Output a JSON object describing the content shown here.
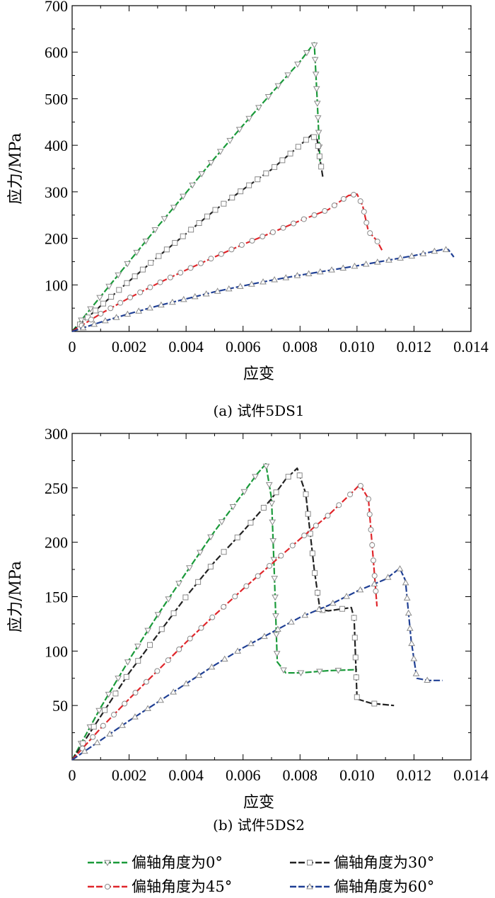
{
  "legend": [
    {
      "label": "偏轴角度为0°",
      "color": "#1a9a3a",
      "marker": "triangle-down"
    },
    {
      "label": "偏轴角度为30°",
      "color": "#222222",
      "marker": "square"
    },
    {
      "label": "偏轴角度为45°",
      "color": "#e0262b",
      "marker": "circle"
    },
    {
      "label": "偏轴角度为60°",
      "color": "#1f3f94",
      "marker": "triangle-up"
    }
  ],
  "legend_placement": "bottom",
  "chart_data": [
    {
      "type": "line",
      "caption": "(a) 试件5DS1",
      "xlabel": "应变",
      "ylabel": "应力/MPa",
      "xlim": [
        0,
        0.014
      ],
      "ylim": [
        0,
        700
      ],
      "x_ticks": [
        "0",
        "0.002",
        "0.004",
        "0.006",
        "0.008",
        "0.010",
        "0.012",
        "0.014"
      ],
      "y_ticks": [
        "100",
        "200",
        "300",
        "400",
        "500",
        "600",
        "700"
      ],
      "grid": false,
      "series": [
        {
          "name": "偏轴角度为0°",
          "points": [
            [
              0,
              0
            ],
            [
              0.001,
              75
            ],
            [
              0.002,
              150
            ],
            [
              0.003,
              225
            ],
            [
              0.004,
              298
            ],
            [
              0.005,
              372
            ],
            [
              0.006,
              443
            ],
            [
              0.007,
              512
            ],
            [
              0.008,
              580
            ],
            [
              0.0084,
              612
            ],
            [
              0.0085,
              620
            ],
            [
              0.0086,
              500
            ],
            [
              0.0087,
              365
            ]
          ]
        },
        {
          "name": "偏轴角度为30°",
          "points": [
            [
              0,
              0
            ],
            [
              0.001,
              55
            ],
            [
              0.002,
              108
            ],
            [
              0.003,
              160
            ],
            [
              0.004,
              210
            ],
            [
              0.005,
              260
            ],
            [
              0.006,
              305
            ],
            [
              0.007,
              348
            ],
            [
              0.008,
              400
            ],
            [
              0.0084,
              422
            ],
            [
              0.0086,
              412
            ],
            [
              0.0087,
              370
            ],
            [
              0.0088,
              332
            ]
          ]
        },
        {
          "name": "偏轴角度为45°",
          "points": [
            [
              0,
              0
            ],
            [
              0.001,
              38
            ],
            [
              0.002,
              72
            ],
            [
              0.003,
              103
            ],
            [
              0.004,
              132
            ],
            [
              0.005,
              160
            ],
            [
              0.006,
              187
            ],
            [
              0.007,
              212
            ],
            [
              0.008,
              238
            ],
            [
              0.009,
              262
            ],
            [
              0.0097,
              292
            ],
            [
              0.01,
              295
            ],
            [
              0.0102,
              270
            ],
            [
              0.0104,
              215
            ],
            [
              0.0107,
              195
            ],
            [
              0.0109,
              172
            ]
          ]
        },
        {
          "name": "偏轴角度为60°",
          "points": [
            [
              0,
              0
            ],
            [
              0.001,
              20
            ],
            [
              0.002,
              38
            ],
            [
              0.003,
              55
            ],
            [
              0.004,
              70
            ],
            [
              0.005,
              85
            ],
            [
              0.006,
              98
            ],
            [
              0.007,
              110
            ],
            [
              0.008,
              121
            ],
            [
              0.009,
              131
            ],
            [
              0.01,
              141
            ],
            [
              0.011,
              152
            ],
            [
              0.012,
              163
            ],
            [
              0.013,
              176
            ],
            [
              0.0132,
              176
            ],
            [
              0.0134,
              160
            ]
          ]
        }
      ]
    },
    {
      "type": "line",
      "caption": "(b) 试件5DS2",
      "xlabel": "应变",
      "ylabel": "应力/MPa",
      "xlim": [
        0,
        0.014
      ],
      "ylim": [
        0,
        300
      ],
      "x_ticks": [
        "0",
        "0.002",
        "0.004",
        "0.006",
        "0.008",
        "0.010",
        "0.012",
        "0.014"
      ],
      "y_ticks": [
        "50",
        "100",
        "150",
        "200",
        "250",
        "300"
      ],
      "grid": false,
      "series": [
        {
          "name": "偏轴角度为0°",
          "points": [
            [
              0,
              0
            ],
            [
              0.001,
              48
            ],
            [
              0.002,
              92
            ],
            [
              0.003,
              133
            ],
            [
              0.004,
              172
            ],
            [
              0.005,
              210
            ],
            [
              0.006,
              245
            ],
            [
              0.0065,
              263
            ],
            [
              0.0068,
              272
            ],
            [
              0.007,
              240
            ],
            [
              0.0071,
              170
            ],
            [
              0.0072,
              90
            ],
            [
              0.0075,
              80
            ],
            [
              0.008,
              80
            ],
            [
              0.009,
              82
            ],
            [
              0.01,
              83
            ]
          ]
        },
        {
          "name": "偏轴角度为30°",
          "points": [
            [
              0,
              0
            ],
            [
              0.001,
              40
            ],
            [
              0.002,
              80
            ],
            [
              0.003,
              115
            ],
            [
              0.004,
              150
            ],
            [
              0.005,
              182
            ],
            [
              0.006,
              210
            ],
            [
              0.007,
              240
            ],
            [
              0.0075,
              258
            ],
            [
              0.0079,
              268
            ],
            [
              0.0082,
              245
            ],
            [
              0.0085,
              175
            ],
            [
              0.0087,
              138
            ],
            [
              0.009,
              137
            ],
            [
              0.0098,
              140
            ],
            [
              0.0099,
              130
            ],
            [
              0.01,
              56
            ],
            [
              0.0105,
              52
            ],
            [
              0.0113,
              50
            ]
          ]
        },
        {
          "name": "偏轴角度为45°",
          "points": [
            [
              0,
              0
            ],
            [
              0.001,
              29
            ],
            [
              0.002,
              56
            ],
            [
              0.003,
              82
            ],
            [
              0.004,
              108
            ],
            [
              0.005,
              133
            ],
            [
              0.006,
              157
            ],
            [
              0.007,
              180
            ],
            [
              0.008,
              203
            ],
            [
              0.009,
              225
            ],
            [
              0.0098,
              245
            ],
            [
              0.0101,
              253
            ],
            [
              0.0104,
              240
            ],
            [
              0.0106,
              175
            ],
            [
              0.0107,
              141
            ]
          ]
        },
        {
          "name": "偏轴角度为60°",
          "points": [
            [
              0,
              0
            ],
            [
              0.001,
              18
            ],
            [
              0.002,
              36
            ],
            [
              0.003,
              53
            ],
            [
              0.004,
              70
            ],
            [
              0.005,
              87
            ],
            [
              0.006,
              103
            ],
            [
              0.007,
              117
            ],
            [
              0.008,
              131
            ],
            [
              0.009,
              142
            ],
            [
              0.01,
              155
            ],
            [
              0.011,
              166
            ],
            [
              0.0115,
              176
            ],
            [
              0.0117,
              165
            ],
            [
              0.0119,
              110
            ],
            [
              0.0121,
              75
            ],
            [
              0.0125,
              73
            ],
            [
              0.013,
              73
            ]
          ]
        }
      ]
    }
  ]
}
